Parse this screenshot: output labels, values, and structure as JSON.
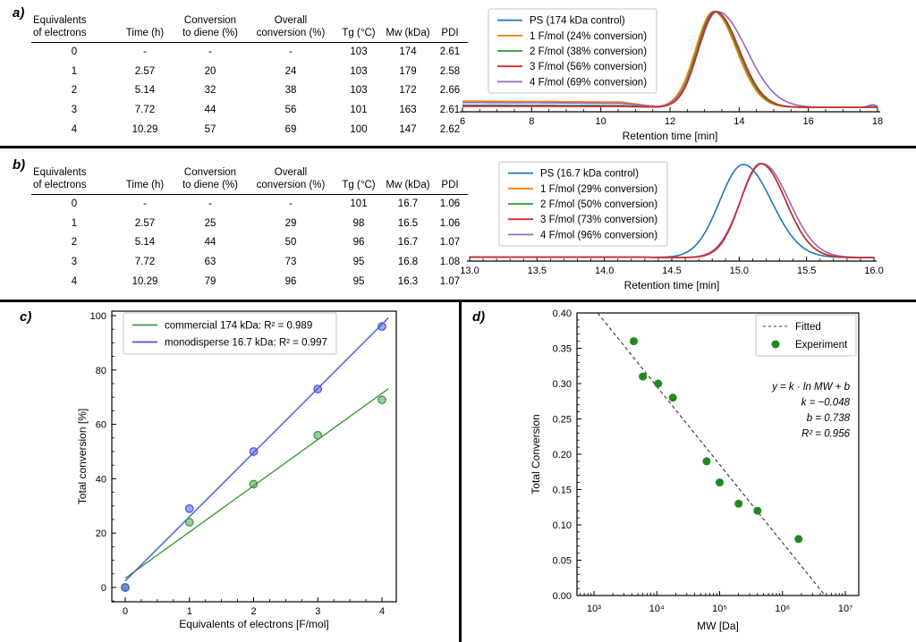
{
  "panels": {
    "a": {
      "label": "a)",
      "table": {
        "headers": [
          "Equivalents\nof electrons",
          "Time (h)",
          "Conversion\nto diene (%)",
          "Overall\nconversion (%)",
          "Tg (°C)",
          "Mw (kDa)",
          "PDI"
        ],
        "rows": [
          [
            "0",
            "-",
            "-",
            "-",
            "103",
            "174",
            "2.61"
          ],
          [
            "1",
            "2.57",
            "20",
            "24",
            "103",
            "179",
            "2.58"
          ],
          [
            "2",
            "5.14",
            "32",
            "38",
            "103",
            "172",
            "2.66"
          ],
          [
            "3",
            "7.72",
            "44",
            "56",
            "101",
            "163",
            "2.61"
          ],
          [
            "4",
            "10.29",
            "57",
            "69",
            "100",
            "147",
            "2.62"
          ]
        ]
      }
    },
    "b": {
      "label": "b)",
      "table": {
        "headers": [
          "Equivalents\nof electrons",
          "Time (h)",
          "Conversion\nto diene (%)",
          "Overall\nconversion (%)",
          "Tg (°C)",
          "Mw (kDa)",
          "PDI"
        ],
        "rows": [
          [
            "0",
            "-",
            "-",
            "-",
            "101",
            "16.7",
            "1.06"
          ],
          [
            "1",
            "2.57",
            "25",
            "29",
            "98",
            "16.5",
            "1.06"
          ],
          [
            "2",
            "5.14",
            "44",
            "50",
            "96",
            "16.7",
            "1.07"
          ],
          [
            "3",
            "7.72",
            "63",
            "73",
            "95",
            "16.8",
            "1.08"
          ],
          [
            "4",
            "10.29",
            "79",
            "96",
            "95",
            "16.3",
            "1.07"
          ]
        ]
      }
    },
    "c": {
      "label": "c)"
    },
    "d": {
      "label": "d)"
    }
  },
  "chart_data": [
    {
      "id": "panel_a_gpc",
      "type": "line",
      "title": "",
      "xlabel": "Retention time [min]",
      "ylabel": "",
      "xlim": [
        6,
        18
      ],
      "xticks_major": 2,
      "xticks_minor": 0.5,
      "tick_decimals": 0,
      "grid": false,
      "legend_position": "upper left",
      "baseline_profile": [
        [
          6,
          1
        ],
        [
          10.6,
          0.85
        ],
        [
          11.7,
          0
        ]
      ],
      "series": [
        {
          "name": "PS (174 kDa control)",
          "color": "#1f77b4",
          "peak_center": 13.32,
          "sigma_left": 0.5,
          "sigma_right": 0.68,
          "amplitude": 1.0,
          "baseline": 0.022,
          "bump": {
            "center": 17.85,
            "sigma": 0.12,
            "amp": 0.025
          }
        },
        {
          "name": "1 F/mol (24% conversion)",
          "color": "#ff7f0e",
          "peak_center": 13.26,
          "sigma_left": 0.52,
          "sigma_right": 0.66,
          "amplitude": 1.0,
          "baseline": 0.065
        },
        {
          "name": "2 F/mol (38% conversion)",
          "color": "#2ca02c",
          "peak_center": 13.29,
          "sigma_left": 0.51,
          "sigma_right": 0.67,
          "amplitude": 1.0,
          "baseline": 0.015
        },
        {
          "name": "3 F/mol (56% conversion)",
          "color": "#d62728",
          "peak_center": 13.32,
          "sigma_left": 0.5,
          "sigma_right": 0.68,
          "amplitude": 1.0,
          "baseline": 0.01
        },
        {
          "name": "4 F/mol (69% conversion)",
          "color": "#9467bd",
          "peak_center": 13.37,
          "sigma_left": 0.54,
          "sigma_right": 0.84,
          "amplitude": 1.0,
          "baseline": 0.05,
          "bump": {
            "center": 17.85,
            "sigma": 0.12,
            "amp": 0.02
          }
        }
      ]
    },
    {
      "id": "panel_b_gpc",
      "type": "line",
      "title": "",
      "xlabel": "Retention time [min]",
      "ylabel": "",
      "xlim": [
        13,
        16
      ],
      "xticks_major": 0.5,
      "xticks_minor": 0.1,
      "tick_decimals": 1,
      "grid": false,
      "legend_position": "upper left",
      "baseline_profile": [
        [
          13,
          1
        ],
        [
          14.2,
          1
        ],
        [
          14.55,
          0
        ]
      ],
      "series": [
        {
          "name": "PS (16.7 kDa control)",
          "color": "#1f77b4",
          "peak_center": 15.03,
          "sigma_left": 0.175,
          "sigma_right": 0.21,
          "amplitude": 0.99,
          "baseline": 0.004
        },
        {
          "name": "1 F/mol (29% conversion)",
          "color": "#ff7f0e",
          "peak_center": 15.16,
          "sigma_left": 0.15,
          "sigma_right": 0.185,
          "amplitude": 1.0,
          "baseline": 0.004
        },
        {
          "name": "2 F/mol (50% conversion)",
          "color": "#2ca02c",
          "peak_center": 15.16,
          "sigma_left": 0.15,
          "sigma_right": 0.185,
          "amplitude": 1.0,
          "baseline": 0.004
        },
        {
          "name": "3 F/mol (73% conversion)",
          "color": "#d62728",
          "peak_center": 15.16,
          "sigma_left": 0.15,
          "sigma_right": 0.185,
          "amplitude": 1.0,
          "baseline": 0.004
        },
        {
          "name": "4 F/mol (96% conversion)",
          "color": "#9467bd",
          "peak_center": 15.17,
          "sigma_left": 0.16,
          "sigma_right": 0.2,
          "amplitude": 1.0,
          "baseline": 0.004
        }
      ]
    },
    {
      "id": "panel_c_conversion_vs_equivalents",
      "type": "scatter",
      "title": "",
      "xlabel": "Equivalents of electrons [F/mol]",
      "ylabel": "Total conversion [%]",
      "xlim": [
        -0.21,
        4.22
      ],
      "ylim": [
        -5.3,
        101.5
      ],
      "xticks": [
        0,
        1,
        2,
        3,
        4
      ],
      "xtick_minor": 0.25,
      "yticks": [
        0,
        20,
        40,
        60,
        80,
        100
      ],
      "ytick_minor": 5,
      "grid": false,
      "legend_position": "upper left",
      "series": [
        {
          "name": "commercial 174 kDa: R² = 0.989",
          "color": "#3d9a3d",
          "points": [
            [
              0,
              0
            ],
            [
              1,
              24
            ],
            [
              2,
              38
            ],
            [
              3,
              56
            ],
            [
              4,
              69
            ]
          ],
          "fit": {
            "slope": 17.0,
            "intercept": 3.4,
            "x_range": [
              0,
              4.1
            ]
          }
        },
        {
          "name": "monodisperse 16.7 kDa: R² = 0.997",
          "color": "#4655e0",
          "points": [
            [
              0,
              0
            ],
            [
              1,
              29
            ],
            [
              2,
              50
            ],
            [
              3,
              73
            ],
            [
              4,
              96
            ]
          ],
          "fit": {
            "slope": 23.6,
            "intercept": 2.4,
            "x_range": [
              0,
              4.1
            ]
          }
        }
      ]
    },
    {
      "id": "panel_d_conversion_vs_mw",
      "type": "scatter",
      "title": "",
      "xlabel": "MW [Da]",
      "ylabel": "Total Conversion",
      "xscale": "log",
      "xlim": [
        540,
        16000000
      ],
      "ylim": [
        0,
        0.4
      ],
      "xticks_decades": [
        3,
        4,
        5,
        6,
        7
      ],
      "yticks_step": 0.05,
      "ytick_minor": 0.01,
      "ytick_decimals": 2,
      "grid": false,
      "legend_position": "upper right",
      "series": [
        {
          "name": "Experiment",
          "color": "#1f8b1f",
          "points": [
            [
              4300,
              0.36
            ],
            [
              6000,
              0.31
            ],
            [
              10500,
              0.3
            ],
            [
              18000,
              0.28
            ],
            [
              62000,
              0.19
            ],
            [
              100000,
              0.16
            ],
            [
              200000,
              0.13
            ],
            [
              400000,
              0.12
            ],
            [
              1800000,
              0.08
            ]
          ]
        }
      ],
      "fit": {
        "name": "Fitted",
        "k": -0.048,
        "b": 0.738,
        "color": "#333333"
      },
      "annotation_lines": [
        "y = k · ln MW + b",
        "k = −0.048",
        "b = 0.738",
        "R² = 0.956"
      ]
    }
  ]
}
